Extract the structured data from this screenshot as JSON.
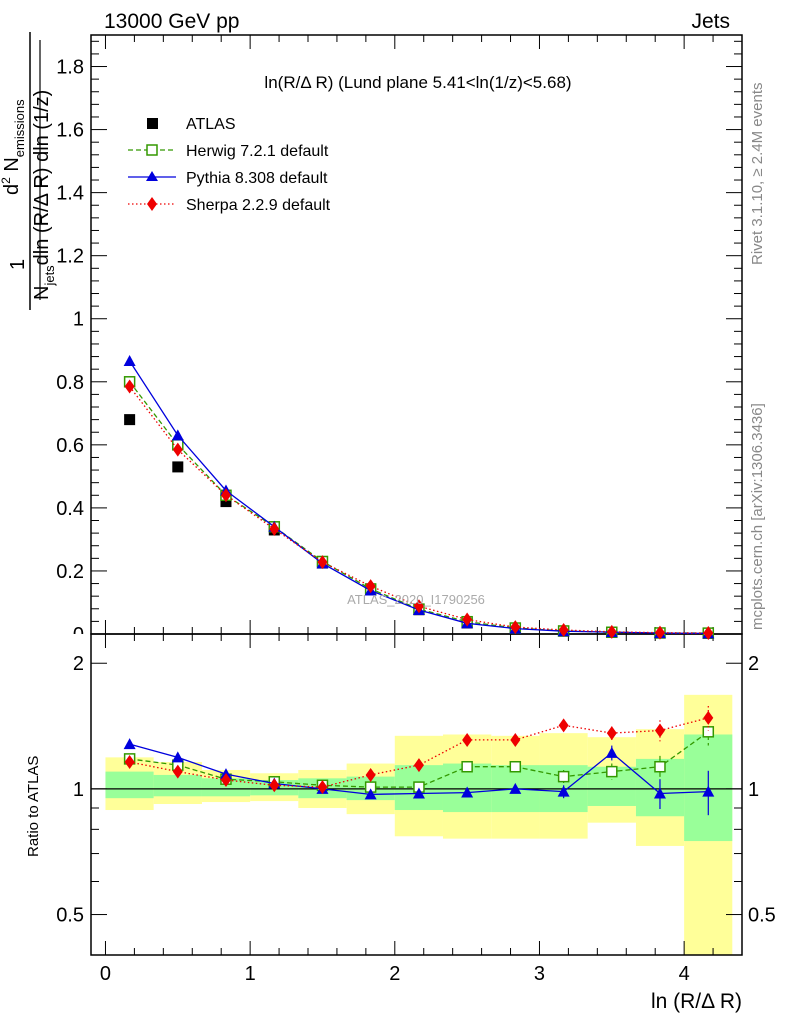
{
  "header": {
    "left": "13000 GeV pp",
    "right": "Jets"
  },
  "side": {
    "rivet": "Rivet 3.1.10, ≥ 2.4M events",
    "mcplots": "mcplots.cern.ch [arXiv:1306.3436]"
  },
  "watermark": "ATLAS_2020_I1790256",
  "colors": {
    "atlas": "#000000",
    "herwig": "#339900",
    "pythia": "#0000dd",
    "sherpa": "#ee0000",
    "band_yellow": "#ffff99",
    "band_green": "#99ff99"
  },
  "chart_data": [
    {
      "type": "scatter",
      "title": "ln(R/Δ R) (Lund plane 5.41<ln(1/z)<5.68)",
      "ylabel": "1/N_jets d²N_emissions / dln(R/Δ R) dln(1/z)",
      "xlim": [
        -0.1,
        4.4
      ],
      "ylim": [
        0,
        1.9
      ],
      "yticks": [
        "0.2",
        "0.4",
        "0.6",
        "0.8",
        "1",
        "1.2",
        "1.4",
        "1.6",
        "1.8"
      ],
      "legend_position": "top-left",
      "x": [
        0.167,
        0.5,
        0.833,
        1.167,
        1.5,
        1.833,
        2.167,
        2.5,
        2.833,
        3.167,
        3.5,
        3.833,
        4.167
      ],
      "series": [
        {
          "name": "ATLAS",
          "marker": "square",
          "values": [
            0.68,
            0.53,
            0.42,
            0.33,
            0.225,
            0.14,
            0.077,
            0.035,
            0.017,
            0.009,
            0.005,
            0.003,
            0.002
          ]
        },
        {
          "name": "Herwig 7.2.1 default",
          "marker": "open-square",
          "line": "dashed",
          "values": [
            0.8,
            0.6,
            0.44,
            0.34,
            0.23,
            0.143,
            0.079,
            0.039,
            0.019,
            0.0097,
            0.0055,
            0.0033,
            0.0028
          ]
        },
        {
          "name": "Pythia 8.308 default",
          "marker": "triangle",
          "line": "solid",
          "values": [
            0.866,
            0.63,
            0.455,
            0.34,
            0.224,
            0.138,
            0.076,
            0.034,
            0.017,
            0.0089,
            0.0061,
            0.0029,
            0.002
          ]
        },
        {
          "name": "Sherpa 2.2.9 default",
          "marker": "diamond",
          "line": "dotted",
          "values": [
            0.785,
            0.585,
            0.44,
            0.333,
            0.228,
            0.152,
            0.088,
            0.046,
            0.022,
            0.0126,
            0.0069,
            0.0042,
            0.003
          ]
        }
      ]
    },
    {
      "type": "scatter",
      "ylabel": "Ratio to ATLAS",
      "xlabel": "ln (R/Δ R)",
      "xlim": [
        -0.1,
        4.4
      ],
      "ylim": [
        0.4,
        2.35
      ],
      "y_scale": "log",
      "yticks": [
        "0.5",
        "1",
        "2"
      ],
      "xticks": [
        "0",
        "1",
        "2",
        "3",
        "4"
      ],
      "x": [
        0.167,
        0.5,
        0.833,
        1.167,
        1.5,
        1.833,
        2.167,
        2.5,
        2.833,
        3.167,
        3.5,
        3.833,
        4.167
      ],
      "bin_edges": [
        0,
        0.333,
        0.667,
        1.0,
        1.333,
        1.667,
        2.0,
        2.333,
        2.667,
        3.0,
        3.333,
        3.667,
        4.0,
        4.333
      ],
      "band_yellow": [
        [
          0.89,
          1.19
        ],
        [
          0.92,
          1.16
        ],
        [
          0.93,
          1.11
        ],
        [
          0.935,
          1.09
        ],
        [
          0.9,
          1.11
        ],
        [
          0.87,
          1.15
        ],
        [
          0.77,
          1.34
        ],
        [
          0.76,
          1.35
        ],
        [
          0.76,
          1.34
        ],
        [
          0.76,
          1.36
        ],
        [
          0.83,
          1.33
        ],
        [
          0.73,
          1.39
        ],
        [
          0.34,
          1.68
        ]
      ],
      "band_green": [
        [
          0.95,
          1.1
        ],
        [
          0.96,
          1.08
        ],
        [
          0.96,
          1.06
        ],
        [
          0.965,
          1.05
        ],
        [
          0.95,
          1.06
        ],
        [
          0.94,
          1.07
        ],
        [
          0.89,
          1.14
        ],
        [
          0.88,
          1.15
        ],
        [
          0.88,
          1.14
        ],
        [
          0.88,
          1.14
        ],
        [
          0.91,
          1.13
        ],
        [
          0.86,
          1.18
        ],
        [
          0.75,
          1.35
        ]
      ],
      "series": [
        {
          "name": "Herwig 7.2.1 default",
          "values": [
            1.18,
            1.14,
            1.055,
            1.04,
            1.02,
            1.01,
            1.01,
            1.13,
            1.13,
            1.07,
            1.1,
            1.13,
            1.37
          ],
          "errors": [
            0,
            0,
            0,
            0,
            0,
            0,
            0,
            0.02,
            0.02,
            0.04,
            0.05,
            0.07,
            0.1
          ]
        },
        {
          "name": "Pythia 8.308 default",
          "values": [
            1.28,
            1.19,
            1.085,
            1.03,
            1.0,
            0.97,
            0.975,
            0.98,
            1.0,
            0.985,
            1.22,
            0.975,
            0.985
          ],
          "errors": [
            0,
            0,
            0,
            0,
            0,
            0,
            0,
            0.01,
            0.025,
            0.035,
            0.05,
            0.08,
            0.12
          ]
        },
        {
          "name": "Sherpa 2.2.9 default",
          "values": [
            1.16,
            1.1,
            1.05,
            1.02,
            1.01,
            1.08,
            1.14,
            1.31,
            1.31,
            1.42,
            1.36,
            1.38,
            1.48
          ],
          "errors": [
            0,
            0,
            0,
            0,
            0,
            0,
            0,
            0.02,
            0.025,
            0.04,
            0.05,
            0.08,
            0.1
          ]
        }
      ]
    }
  ]
}
